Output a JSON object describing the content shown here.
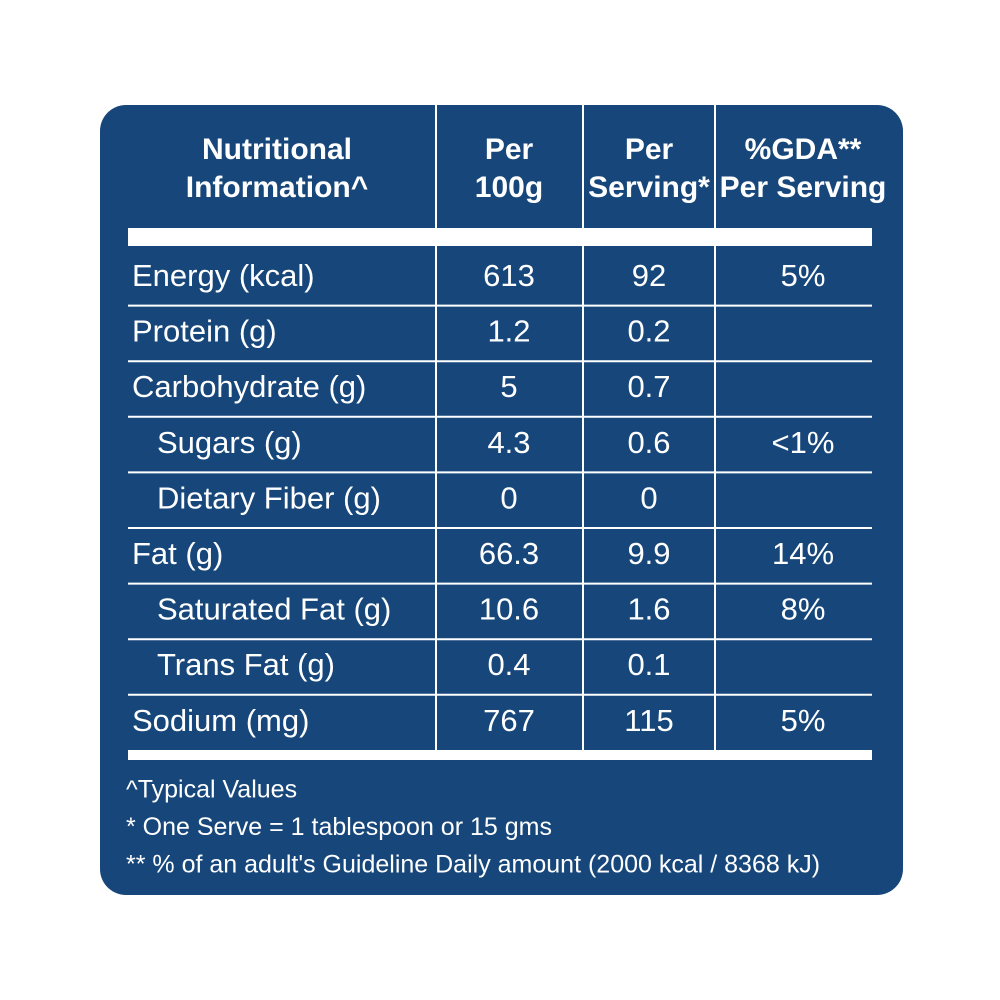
{
  "table": {
    "header": [
      [
        "Nutritional",
        "Information^"
      ],
      [
        "Per",
        "100g"
      ],
      [
        "Per",
        "Serving*"
      ],
      [
        "%GDA**",
        "Per Serving"
      ]
    ],
    "rows": [
      {
        "name": "Energy (kcal)",
        "per_100g": "613",
        "per_serving": "92",
        "gda": "5%",
        "indent": false
      },
      {
        "name": "Protein (g)",
        "per_100g": "1.2",
        "per_serving": "0.2",
        "gda": null,
        "indent": false
      },
      {
        "name": "Carbohydrate (g)",
        "per_100g": "5",
        "per_serving": "0.7",
        "gda": null,
        "indent": false
      },
      {
        "name": "Sugars (g)",
        "per_100g": "4.3",
        "per_serving": "0.6",
        "gda": "<1%",
        "indent": true
      },
      {
        "name": "Dietary Fiber (g)",
        "per_100g": "0",
        "per_serving": "0",
        "gda": null,
        "indent": true
      },
      {
        "name": "Fat (g)",
        "per_100g": "66.3",
        "per_serving": "9.9",
        "gda": "14%",
        "indent": false
      },
      {
        "name": "Saturated Fat (g)",
        "per_100g": "10.6",
        "per_serving": "1.6",
        "gda": "8%",
        "indent": true
      },
      {
        "name": "Trans Fat (g)",
        "per_100g": "0.4",
        "per_serving": "0.1",
        "gda": null,
        "indent": true
      },
      {
        "name": "Sodium (mg)",
        "per_100g": "767",
        "per_serving": "115",
        "gda": "5%",
        "indent": false
      }
    ]
  },
  "notes": [
    "^Typical Values",
    "* One Serve = 1 tablespoon or 15 gms",
    "** % of an adult's Guideline Daily amount (2000 kcal / 8368 kJ)"
  ]
}
